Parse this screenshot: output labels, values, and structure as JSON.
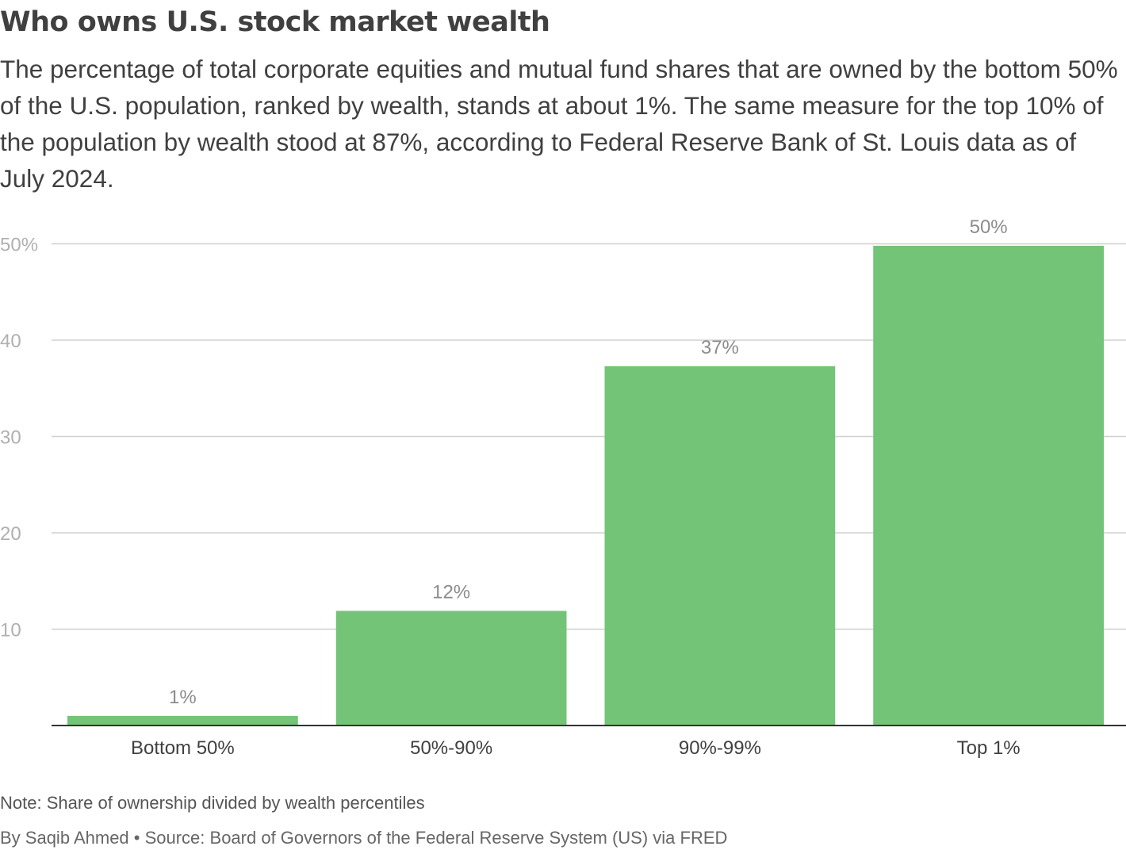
{
  "header": {
    "title": "Who owns U.S. stock market wealth",
    "subtitle": "The percentage of total corporate equities and mutual fund shares that are owned by the bottom 50% of the U.S. population, ranked by wealth, stands at about 1%. The same measure for the top 10% of the population by wealth stood at 87%, according to Federal Reserve Bank of St. Louis data as of July 2024."
  },
  "footer": {
    "note": "Note: Share of ownership divided by wealth percentiles",
    "source": "By Saqib Ahmed • Source: Board of Governors of the Federal Reserve System (US) via FRED"
  },
  "colors": {
    "bar": "#73c476",
    "grid": "#d0d0d0",
    "axis": "#333333"
  },
  "chart_data": {
    "type": "bar",
    "categories": [
      "Bottom 50%",
      "50%-90%",
      "90%-99%",
      "Top 1%"
    ],
    "values": [
      1,
      11.9,
      37.3,
      49.8
    ],
    "data_labels": [
      "1%",
      "12%",
      "37%",
      "50%"
    ],
    "title": "",
    "xlabel": "",
    "ylabel": "",
    "ylim": [
      0,
      50
    ],
    "yticks": [
      10,
      20,
      30,
      40,
      50
    ],
    "ytick_labels": [
      "10",
      "20",
      "30",
      "40",
      "50%"
    ],
    "grid": true,
    "legend": "none"
  }
}
